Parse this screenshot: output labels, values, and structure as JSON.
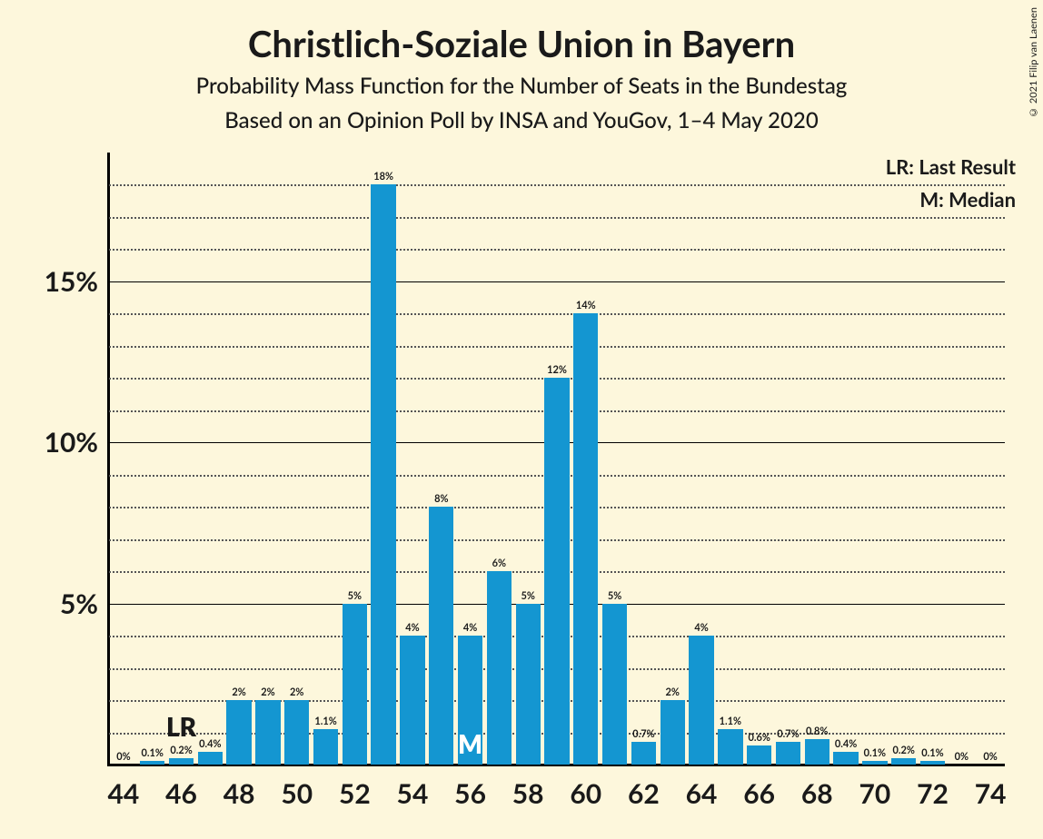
{
  "background_color": "#fdf7dc",
  "copyright": "© 2021 Filip van Laenen",
  "title": "Christlich-Soziale Union in Bayern",
  "subtitle1": "Probability Mass Function for the Number of Seats in the Bundestag",
  "subtitle2": "Based on an Opinion Poll by INSA and YouGov, 1–4 May 2020",
  "legend": {
    "lr": "LR: Last Result",
    "m": "M: Median"
  },
  "chart": {
    "type": "bar",
    "bar_color": "#1496d1",
    "text_color": "#1a1a1a",
    "annot_lr_color": "#1a1a1a",
    "annot_m_color": "#ffffff",
    "axis_color": "#000000",
    "grid_solid_color": "#000000",
    "grid_dotted_color": "#555555",
    "bar_width": 0.86,
    "xlim": [
      44,
      74
    ],
    "xtick_step": 2,
    "ylim": [
      0,
      19
    ],
    "yticks_major": [
      5,
      10,
      15
    ],
    "yticks_minor": [
      1,
      2,
      3,
      4,
      6,
      7,
      8,
      9,
      11,
      12,
      13,
      14,
      16,
      17,
      18
    ],
    "categories": [
      44,
      45,
      46,
      47,
      48,
      49,
      50,
      51,
      52,
      53,
      54,
      55,
      56,
      57,
      58,
      59,
      60,
      61,
      62,
      63,
      64,
      65,
      66,
      67,
      68,
      69,
      70,
      71,
      72,
      73,
      74
    ],
    "values": [
      0,
      0.1,
      0.2,
      0.4,
      2,
      2,
      2,
      1.1,
      5,
      18,
      4,
      8,
      4,
      6,
      5,
      12,
      14,
      5,
      0.7,
      2,
      4,
      1.1,
      0.6,
      0.7,
      0.8,
      0.4,
      0.1,
      0.2,
      0.1,
      0,
      0
    ],
    "value_labels": [
      "0%",
      "0.1%",
      "0.2%",
      "0.4%",
      "2%",
      "2%",
      "2%",
      "1.1%",
      "5%",
      "18%",
      "4%",
      "8%",
      "4%",
      "6%",
      "5%",
      "12%",
      "14%",
      "5%",
      "0.7%",
      "2%",
      "4%",
      "1.1%",
      "0.6%",
      "0.7%",
      "0.8%",
      "0.4%",
      "0.1%",
      "0.2%",
      "0.1%",
      "0%",
      "0%"
    ],
    "annotations": {
      "LR": {
        "seat": 46,
        "text": "LR",
        "inside": false
      },
      "M": {
        "seat": 56,
        "text": "M",
        "inside": true
      }
    },
    "title_fontsize": 40,
    "subtitle_fontsize": 24,
    "axis_label_fontsize": 30,
    "bar_label_fontsize": 11,
    "annotation_fontsize": 28
  }
}
